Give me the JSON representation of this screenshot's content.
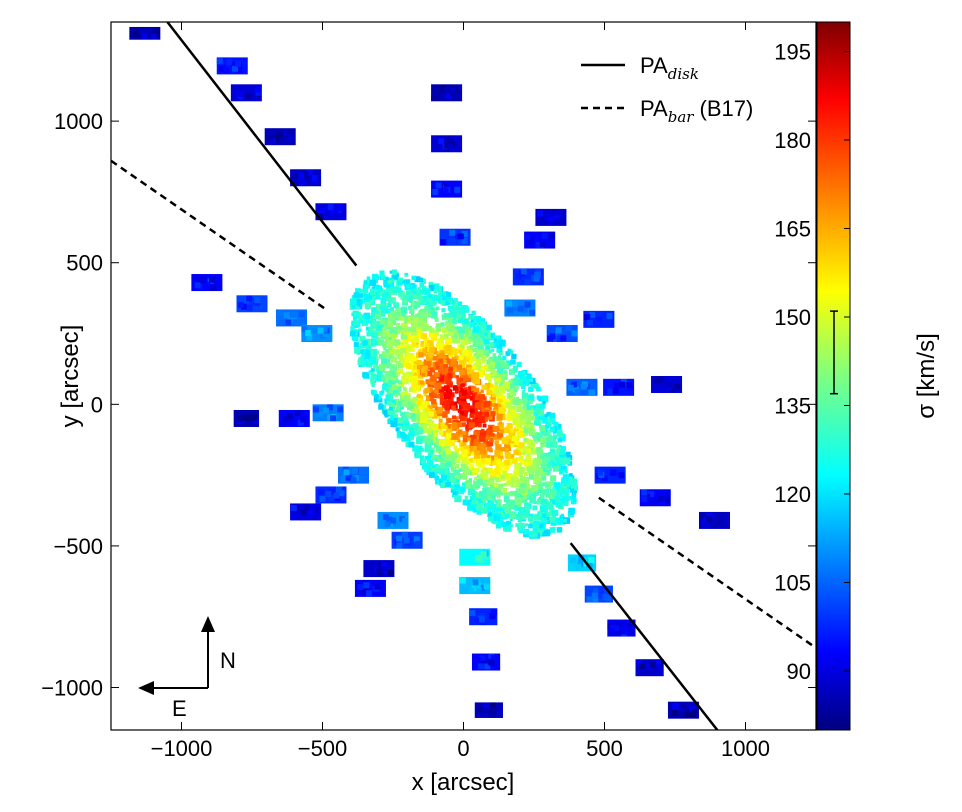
{
  "chart_data": {
    "type": "scatter",
    "title": "",
    "xlabel": "x [arcsec]",
    "ylabel": "y [arcsec]",
    "xlim": [
      -1250,
      1250
    ],
    "ylim": [
      -1150,
      1350
    ],
    "xticks": [
      -1000,
      -500,
      0,
      500,
      1000
    ],
    "xtick_labels": [
      "−1000",
      "−500",
      "0",
      "500",
      "1000"
    ],
    "yticks": [
      -1000,
      -500,
      0,
      500,
      1000
    ],
    "ytick_labels": [
      "−1000",
      "−500",
      "0",
      "500",
      "1000"
    ],
    "grid": false,
    "colormap": "jet",
    "colorbar": {
      "label": "σ [km/s]",
      "range": [
        80,
        200
      ],
      "ticks": [
        90,
        105,
        120,
        135,
        150,
        165,
        180,
        195
      ],
      "tick_labels": [
        "90",
        "105",
        "120",
        "135",
        "150",
        "165",
        "180",
        "195"
      ],
      "errorbar": {
        "center": 144,
        "low": 137,
        "high": 151
      }
    },
    "lines": [
      {
        "name": "PA_disk",
        "style": "solid",
        "segments": [
          [
            [
              -1050,
              1350
            ],
            [
              -380,
              490
            ]
          ],
          [
            [
              380,
              -490
            ],
            [
              900,
              -1150
            ]
          ]
        ]
      },
      {
        "name": "PA_bar (B17)",
        "style": "dashed",
        "segments": [
          [
            [
              -1250,
              860
            ],
            [
              -480,
              330
            ]
          ],
          [
            [
              480,
              -330
            ],
            [
              1250,
              -860
            ]
          ]
        ]
      }
    ],
    "legend": {
      "position": "top-right",
      "entries": [
        {
          "main": "PA",
          "sub": "disk",
          "suffix": "",
          "style": "solid"
        },
        {
          "main": "PA",
          "sub": "bar",
          "suffix": " (B17)",
          "style": "dashed"
        }
      ]
    },
    "compass": {
      "north": "N",
      "east": "E"
    },
    "bulge": {
      "center": [
        0,
        0
      ],
      "radius_major": 560,
      "radius_minor": 250,
      "pa_deg": 128,
      "sigma_center": 185,
      "sigma_edge": 120,
      "n_points": 2600
    },
    "fields": [
      {
        "x": -1130,
        "y": 1310,
        "w": 110,
        "h": 45,
        "sigma": 85
      },
      {
        "x": -820,
        "y": 1195,
        "w": 110,
        "h": 60,
        "sigma": 97
      },
      {
        "x": -770,
        "y": 1100,
        "w": 110,
        "h": 60,
        "sigma": 90
      },
      {
        "x": -650,
        "y": 945,
        "w": 110,
        "h": 60,
        "sigma": 87
      },
      {
        "x": -560,
        "y": 800,
        "w": 110,
        "h": 60,
        "sigma": 88
      },
      {
        "x": -470,
        "y": 680,
        "w": 110,
        "h": 60,
        "sigma": 91
      },
      {
        "x": -910,
        "y": 430,
        "w": 110,
        "h": 60,
        "sigma": 95
      },
      {
        "x": -750,
        "y": 355,
        "w": 110,
        "h": 60,
        "sigma": 103
      },
      {
        "x": -610,
        "y": 305,
        "w": 110,
        "h": 60,
        "sigma": 108
      },
      {
        "x": -520,
        "y": 250,
        "w": 110,
        "h": 60,
        "sigma": 112
      },
      {
        "x": -770,
        "y": -50,
        "w": 90,
        "h": 60,
        "sigma": 86
      },
      {
        "x": -600,
        "y": -50,
        "w": 110,
        "h": 60,
        "sigma": 95
      },
      {
        "x": -480,
        "y": -30,
        "w": 110,
        "h": 60,
        "sigma": 110
      },
      {
        "x": -560,
        "y": -380,
        "w": 110,
        "h": 60,
        "sigma": 92
      },
      {
        "x": -470,
        "y": -320,
        "w": 110,
        "h": 60,
        "sigma": 100
      },
      {
        "x": -390,
        "y": -250,
        "w": 110,
        "h": 60,
        "sigma": 108
      },
      {
        "x": -300,
        "y": -580,
        "w": 110,
        "h": 60,
        "sigma": 89
      },
      {
        "x": -330,
        "y": -650,
        "w": 110,
        "h": 60,
        "sigma": 94
      },
      {
        "x": -200,
        "y": -480,
        "w": 110,
        "h": 60,
        "sigma": 102
      },
      {
        "x": -250,
        "y": -410,
        "w": 110,
        "h": 60,
        "sigma": 112
      },
      {
        "x": 40,
        "y": -540,
        "w": 110,
        "h": 60,
        "sigma": 125
      },
      {
        "x": 40,
        "y": -640,
        "w": 110,
        "h": 60,
        "sigma": 117
      },
      {
        "x": 70,
        "y": -750,
        "w": 100,
        "h": 60,
        "sigma": 99
      },
      {
        "x": 80,
        "y": -910,
        "w": 100,
        "h": 60,
        "sigma": 95
      },
      {
        "x": 90,
        "y": -1080,
        "w": 100,
        "h": 55,
        "sigma": 87
      },
      {
        "x": 420,
        "y": -560,
        "w": 100,
        "h": 60,
        "sigma": 120
      },
      {
        "x": 480,
        "y": -670,
        "w": 100,
        "h": 60,
        "sigma": 103
      },
      {
        "x": 560,
        "y": -790,
        "w": 100,
        "h": 60,
        "sigma": 93
      },
      {
        "x": 660,
        "y": -930,
        "w": 100,
        "h": 60,
        "sigma": 89
      },
      {
        "x": 780,
        "y": -1080,
        "w": 110,
        "h": 60,
        "sigma": 86
      },
      {
        "x": 520,
        "y": -250,
        "w": 110,
        "h": 60,
        "sigma": 99
      },
      {
        "x": 680,
        "y": -330,
        "w": 110,
        "h": 60,
        "sigma": 94
      },
      {
        "x": 890,
        "y": -410,
        "w": 110,
        "h": 60,
        "sigma": 88
      },
      {
        "x": 420,
        "y": 60,
        "w": 110,
        "h": 60,
        "sigma": 106
      },
      {
        "x": 550,
        "y": 60,
        "w": 110,
        "h": 60,
        "sigma": 97
      },
      {
        "x": 720,
        "y": 70,
        "w": 110,
        "h": 60,
        "sigma": 90
      },
      {
        "x": 480,
        "y": 300,
        "w": 110,
        "h": 60,
        "sigma": 99
      },
      {
        "x": 350,
        "y": 250,
        "w": 110,
        "h": 60,
        "sigma": 104
      },
      {
        "x": 200,
        "y": 340,
        "w": 110,
        "h": 60,
        "sigma": 110
      },
      {
        "x": 310,
        "y": 660,
        "w": 110,
        "h": 60,
        "sigma": 89
      },
      {
        "x": 270,
        "y": 580,
        "w": 110,
        "h": 60,
        "sigma": 94
      },
      {
        "x": 230,
        "y": 450,
        "w": 110,
        "h": 60,
        "sigma": 100
      },
      {
        "x": -60,
        "y": 1100,
        "w": 110,
        "h": 60,
        "sigma": 86
      },
      {
        "x": -60,
        "y": 920,
        "w": 110,
        "h": 60,
        "sigma": 90
      },
      {
        "x": -60,
        "y": 760,
        "w": 110,
        "h": 60,
        "sigma": 95
      },
      {
        "x": -30,
        "y": 590,
        "w": 110,
        "h": 60,
        "sigma": 101
      }
    ]
  },
  "compass_labels": {
    "north": "N",
    "east": "E"
  }
}
